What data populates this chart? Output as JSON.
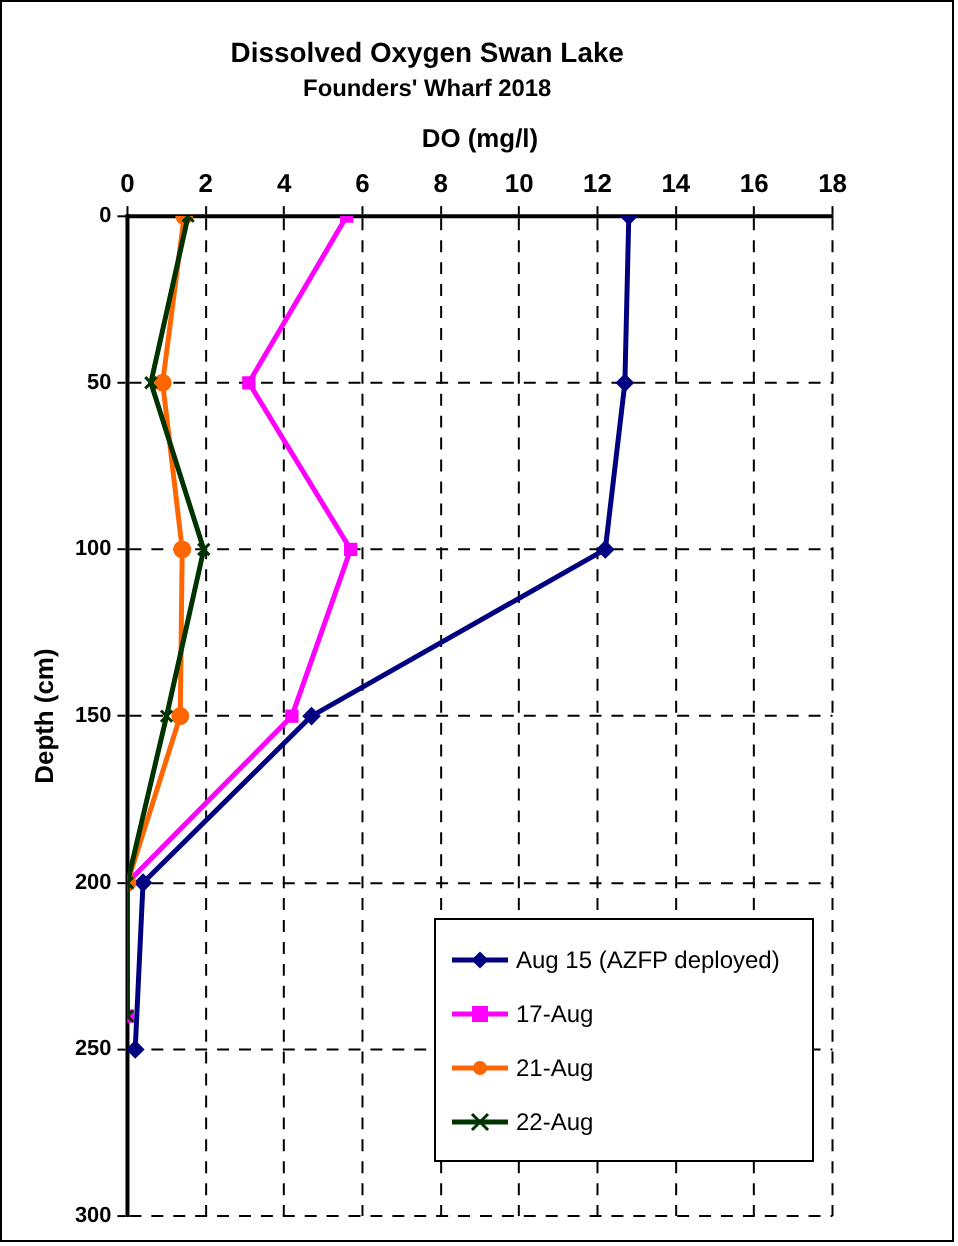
{
  "chart_data": {
    "type": "line",
    "title": "Dissolved Oxygen Swan Lake",
    "subtitle": "Founders' Wharf 2018",
    "xlabel": "DO (mg/l)",
    "ylabel": "Depth (cm)",
    "xlim": [
      0,
      18
    ],
    "xticks": [
      0,
      2,
      4,
      6,
      8,
      10,
      12,
      14,
      16,
      18
    ],
    "ylim": [
      300,
      0
    ],
    "yticks": [
      0,
      50,
      100,
      150,
      200,
      250,
      300
    ],
    "grid": true,
    "legend": "bottom right",
    "series": [
      {
        "name": "Aug 15 (AZFP deployed)",
        "color": "#000080",
        "marker": "diamond",
        "x": [
          12.8,
          12.7,
          12.2,
          4.7,
          0.4,
          0.2
        ],
        "values": [
          0,
          50,
          100,
          150,
          200,
          250
        ]
      },
      {
        "name": "17-Aug",
        "color": "#ff00ff",
        "marker": "square",
        "x": [
          5.6,
          3.1,
          5.7,
          4.2,
          0,
          0
        ],
        "values": [
          0,
          50,
          100,
          150,
          200,
          240
        ]
      },
      {
        "name": "21-Aug",
        "color": "#ff6600",
        "marker": "circle",
        "x": [
          1.45,
          0.9,
          1.4,
          1.35,
          0
        ],
        "values": [
          0,
          50,
          100,
          150,
          200
        ]
      },
      {
        "name": "22-Aug",
        "color": "#003300",
        "marker": "cross",
        "x": [
          1.55,
          0.6,
          1.95,
          1.0,
          0,
          0
        ],
        "values": [
          0,
          50,
          100,
          150,
          200,
          240
        ]
      }
    ]
  }
}
